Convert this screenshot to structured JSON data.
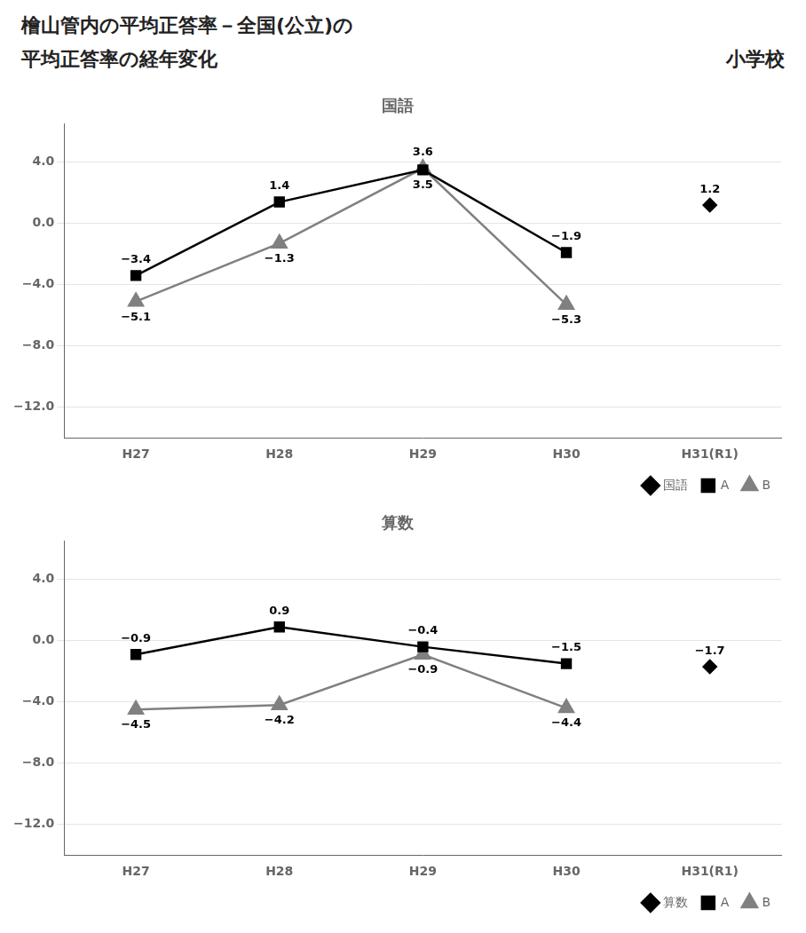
{
  "title": [
    "檜山管内の平均正答率－全国(公立)の",
    "平均正答率の経年変化"
  ],
  "subtitle": "小学校",
  "chart_data": [
    {
      "type": "line",
      "title": "国語",
      "categories": [
        "H27",
        "H28",
        "H29",
        "H30",
        "H31(R1)"
      ],
      "series": [
        {
          "name": "国語",
          "color": "#000000",
          "marker": "diamond",
          "line_style": "none",
          "values": [
            null,
            null,
            null,
            null,
            1.2
          ]
        },
        {
          "name": "A",
          "color": "#000000",
          "marker": "square",
          "line_style": "solid",
          "values": [
            -3.4,
            1.4,
            3.5,
            -1.9,
            null
          ],
          "value_labels": [
            "−3.4",
            "1.4",
            "3.5",
            "−1.9",
            null
          ]
        },
        {
          "name": "B",
          "color": "#808080",
          "marker": "triangle",
          "line_style": "solid",
          "values": [
            -5.1,
            -1.3,
            3.6,
            -5.3,
            null
          ],
          "value_labels": [
            "−5.1",
            "−1.3",
            "3.6",
            "−5.3",
            null
          ]
        }
      ],
      "ylim": [
        -14.0,
        6.5
      ],
      "yticks": [
        {
          "value": 4.0,
          "label": "4.0"
        },
        {
          "value": 0.0,
          "label": "0.0"
        },
        {
          "value": -4.0,
          "label": "−4.0"
        },
        {
          "value": -8.0,
          "label": "−8.0"
        },
        {
          "value": -12.0,
          "label": "−12.0"
        }
      ],
      "grid": true,
      "legend": "lower right",
      "data_labels": true
    },
    {
      "type": "line",
      "title": "算数",
      "categories": [
        "H27",
        "H28",
        "H29",
        "H30",
        "H31(R1)"
      ],
      "series": [
        {
          "name": "算数",
          "color": "#000000",
          "marker": "diamond",
          "line_style": "none",
          "values": [
            null,
            null,
            null,
            null,
            -1.7
          ],
          "value_labels": [
            null,
            null,
            null,
            null,
            "−1.7"
          ]
        },
        {
          "name": "A",
          "color": "#000000",
          "marker": "square",
          "line_style": "solid",
          "values": [
            -0.9,
            0.9,
            -0.4,
            -1.5,
            null
          ],
          "value_labels": [
            "−0.9",
            "0.9",
            "−0.4",
            "−1.5",
            null
          ]
        },
        {
          "name": "B",
          "color": "#808080",
          "marker": "triangle",
          "line_style": "solid",
          "values": [
            -4.5,
            -4.2,
            -0.9,
            -4.4,
            null
          ],
          "value_labels": [
            "−4.5",
            "−4.2",
            "−0.9",
            "−4.4",
            null
          ]
        }
      ],
      "ylim": [
        -14.0,
        6.5
      ],
      "yticks": [
        {
          "value": 4.0,
          "label": "4.0"
        },
        {
          "value": 0.0,
          "label": "0.0"
        },
        {
          "value": -4.0,
          "label": "−4.0"
        },
        {
          "value": -8.0,
          "label": "−8.0"
        },
        {
          "value": -12.0,
          "label": "−12.0"
        }
      ],
      "grid": true,
      "legend": "lower right",
      "data_labels": true
    }
  ]
}
